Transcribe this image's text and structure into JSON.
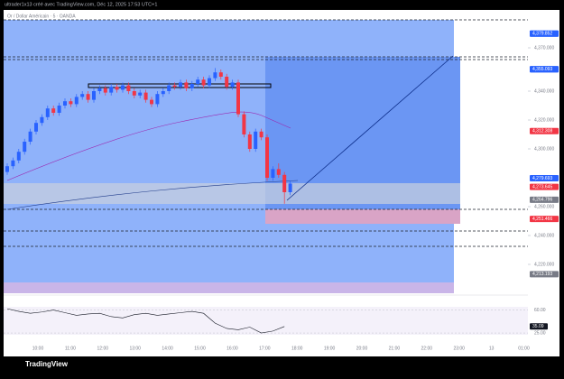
{
  "header": {
    "caption": "ultrader1x13 créé avec TradingView.com, Déc 12, 2025 17:53 UTC+1",
    "symbol": "Or / Dollar Américain · 5 · OANDA",
    "logo": "TradingView"
  },
  "chart_data": {
    "type": "candlestick",
    "ylim": [
      4195,
      4390
    ],
    "up_color": "#2962ff",
    "down_color": "#f23645",
    "candles": [
      [
        4284,
        4290,
        4282,
        4288
      ],
      [
        4288,
        4294,
        4286,
        4292
      ],
      [
        4292,
        4300,
        4290,
        4298
      ],
      [
        4298,
        4307,
        4296,
        4305
      ],
      [
        4305,
        4314,
        4303,
        4312
      ],
      [
        4312,
        4320,
        4310,
        4318
      ],
      [
        4318,
        4324,
        4316,
        4322
      ],
      [
        4322,
        4330,
        4320,
        4328
      ],
      [
        4328,
        4330,
        4323,
        4325
      ],
      [
        4325,
        4332,
        4323,
        4330
      ],
      [
        4330,
        4335,
        4328,
        4333
      ],
      [
        4333,
        4335,
        4329,
        4331
      ],
      [
        4331,
        4338,
        4329,
        4336
      ],
      [
        4336,
        4340,
        4334,
        4338
      ],
      [
        4338,
        4340,
        4332,
        4334
      ],
      [
        4334,
        4342,
        4332,
        4340
      ],
      [
        4340,
        4344,
        4338,
        4342
      ],
      [
        4342,
        4344,
        4337,
        4339
      ],
      [
        4339,
        4345,
        4337,
        4343
      ],
      [
        4343,
        4345,
        4339,
        4341
      ],
      [
        4341,
        4346,
        4339,
        4344
      ],
      [
        4344,
        4346,
        4338,
        4340
      ],
      [
        4340,
        4342,
        4335,
        4337
      ],
      [
        4337,
        4341,
        4335,
        4339
      ],
      [
        4339,
        4341,
        4332,
        4334
      ],
      [
        4334,
        4336,
        4329,
        4331
      ],
      [
        4331,
        4340,
        4329,
        4338
      ],
      [
        4338,
        4342,
        4336,
        4340
      ],
      [
        4340,
        4346,
        4338,
        4344
      ],
      [
        4344,
        4346,
        4341,
        4343
      ],
      [
        4343,
        4348,
        4341,
        4346
      ],
      [
        4346,
        4348,
        4340,
        4342
      ],
      [
        4342,
        4347,
        4340,
        4345
      ],
      [
        4345,
        4350,
        4343,
        4348
      ],
      [
        4348,
        4350,
        4342,
        4344
      ],
      [
        4344,
        4351,
        4342,
        4349
      ],
      [
        4349,
        4356,
        4347,
        4353
      ],
      [
        4353,
        4355,
        4348,
        4350
      ],
      [
        4350,
        4352,
        4341,
        4343
      ],
      [
        4343,
        4348,
        4341,
        4346
      ],
      [
        4346,
        4348,
        4322,
        4324
      ],
      [
        4324,
        4326,
        4308,
        4310
      ],
      [
        4310,
        4312,
        4298,
        4300
      ],
      [
        4300,
        4314,
        4298,
        4312
      ],
      [
        4312,
        4314,
        4306,
        4308
      ],
      [
        4308,
        4310,
        4278,
        4280
      ],
      [
        4280,
        4288,
        4278,
        4286
      ],
      [
        4286,
        4290,
        4280,
        4282
      ],
      [
        4282,
        4284,
        4262,
        4270
      ],
      [
        4270,
        4278,
        4268,
        4276
      ]
    ],
    "yticks": [
      {
        "value": 4370,
        "label": "4,370.000"
      },
      {
        "value": 4340,
        "label": "4,340.000"
      },
      {
        "value": 4320,
        "label": "4,320.000"
      },
      {
        "value": 4300,
        "label": "4,300.000"
      },
      {
        "value": 4260,
        "label": "4,260.000"
      },
      {
        "value": 4240,
        "label": "4,240.000"
      },
      {
        "value": 4220,
        "label": "4,220.000"
      }
    ],
    "price_tags": [
      {
        "value": 4379.862,
        "label": "4,379.862",
        "color": "#2962ff"
      },
      {
        "value": 4379.852,
        "label": "4,379.852",
        "color": "#2962ff"
      },
      {
        "value": 4355.214,
        "label": "4,355.214",
        "color": "#2962ff"
      },
      {
        "value": 4355.093,
        "label": "4,355.093",
        "color": "#2962ff"
      },
      {
        "value": 4312.308,
        "label": "4,312.308",
        "color": "#f23645"
      },
      {
        "value": 4279.693,
        "label": "4,279.693",
        "color": "#2962ff"
      },
      {
        "value": 4273.645,
        "label": "4,273.645",
        "color": "#f23645"
      },
      {
        "value": 4264.796,
        "label": "4,264.796",
        "color": "#787b86"
      },
      {
        "value": 4251.466,
        "label": "4,251.466",
        "color": "#f23645"
      },
      {
        "value": 4213.193,
        "label": "4,213.193",
        "color": "#787b86"
      }
    ],
    "time_labels": [
      "10:00",
      "11:00",
      "12:00",
      "13:00",
      "14:00",
      "15:00",
      "16:00",
      "17:00",
      "18:00",
      "19:00",
      "20:00",
      "21:00",
      "22:00",
      "23:00",
      "13",
      "01:00"
    ],
    "rsi": {
      "color": "#131722",
      "ylim": [
        10,
        80
      ],
      "yticks": [
        {
          "value": 60,
          "label": "60.00"
        },
        {
          "value": 25,
          "label": "25.00"
        }
      ],
      "tag": {
        "value": 35.09,
        "label": "35.09"
      },
      "values": [
        62,
        58,
        55,
        57,
        60,
        56,
        52,
        54,
        55,
        50,
        48,
        53,
        55,
        52,
        54,
        56,
        58,
        55,
        40,
        32,
        30,
        34,
        25,
        28,
        35
      ]
    }
  }
}
